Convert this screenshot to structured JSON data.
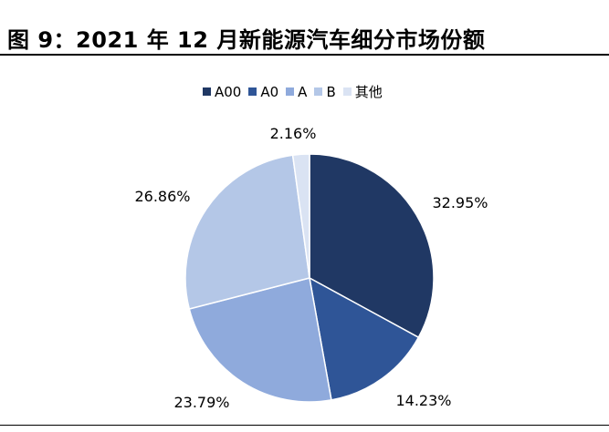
{
  "title": "图 9：2021 年 12 月新能源汽车细分市场份额",
  "chart_data": {
    "type": "pie",
    "legend_position": "top",
    "slices": [
      {
        "name": "A00",
        "value": 32.95,
        "label": "32.95%",
        "color": "#203864"
      },
      {
        "name": "A0",
        "value": 14.23,
        "label": "14.23%",
        "color": "#2F5597"
      },
      {
        "name": "A",
        "value": 23.79,
        "label": "23.79%",
        "color": "#8FAADC"
      },
      {
        "name": "B",
        "value": 26.86,
        "label": "26.86%",
        "color": "#B4C7E7"
      },
      {
        "name": "其他",
        "value": 2.16,
        "label": "2.16%",
        "color": "#DAE3F3"
      }
    ]
  }
}
